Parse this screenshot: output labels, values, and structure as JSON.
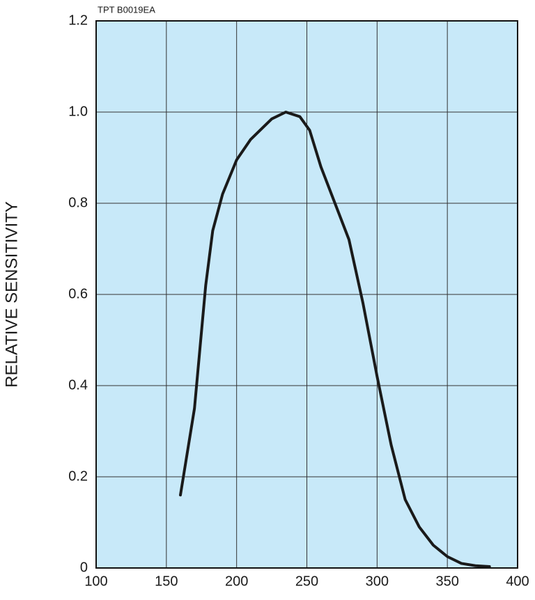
{
  "chart_data": {
    "type": "line",
    "annotation": "TPT B0019EA",
    "y_label": "RELATIVE SENSITIVITY",
    "x": [
      160,
      170,
      178,
      183,
      190,
      200,
      210,
      225,
      235,
      245,
      252,
      260,
      270,
      280,
      290,
      300,
      310,
      320,
      330,
      340,
      350,
      360,
      370,
      380
    ],
    "series": [
      {
        "color": "#1a1a1a",
        "values": [
          0.16,
          0.35,
          0.62,
          0.74,
          0.82,
          0.895,
          0.94,
          0.985,
          1.0,
          0.99,
          0.96,
          0.88,
          0.8,
          0.72,
          0.58,
          0.42,
          0.27,
          0.15,
          0.09,
          0.05,
          0.025,
          0.01,
          0.005,
          0.003
        ]
      }
    ],
    "xlim": [
      100,
      400
    ],
    "xticks": [
      100,
      150,
      200,
      250,
      300,
      350,
      400
    ],
    "ylim": [
      0,
      1.2
    ],
    "yticks": [
      0,
      0.2,
      0.4,
      0.6,
      0.8,
      {
        "value": 1,
        "label": "1.0"
      },
      1.2
    ],
    "plot_background": "#c8e9f9",
    "grid": true
  }
}
